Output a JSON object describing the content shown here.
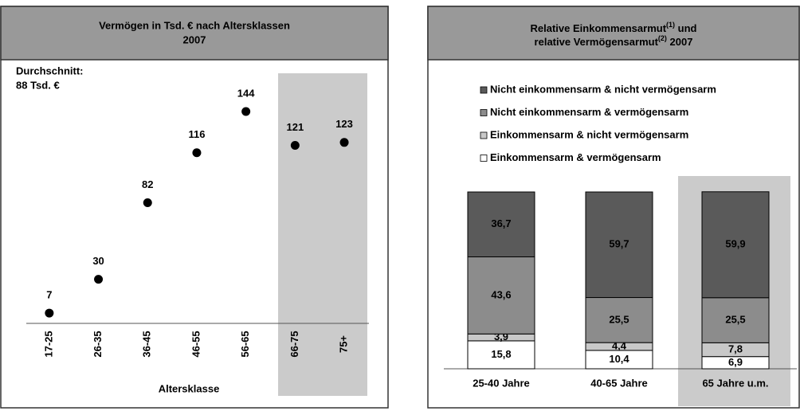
{
  "chart_data": [
    {
      "type": "dot",
      "title": [
        "Vermögen in Tsd. € nach Altersklassen",
        "2007"
      ],
      "annotation": [
        "Durchschnitt:",
        "88 Tsd. €"
      ],
      "x_label": "Altersklasse",
      "categories": [
        "17-25",
        "26-35",
        "36-45",
        "46-55",
        "56-65",
        "66-75",
        "75+"
      ],
      "values": [
        7,
        30,
        82,
        116,
        144,
        121,
        123
      ],
      "color": "#000000",
      "ylim": [
        0,
        170
      ]
    },
    {
      "type": "stacked_bar",
      "title": [
        [
          "Relative Einkommensarmut",
          "(1)",
          " und"
        ],
        [
          "relative Vermögensarmut",
          "(2)",
          " 2007"
        ]
      ],
      "categories": [
        "25-40 Jahre",
        "40-65 Jahre",
        "65 Jahre u.m."
      ],
      "ylim": [
        0,
        100
      ],
      "legend": "top",
      "series": [
        {
          "name": "Einkommensarm & vermögensarm",
          "color": "#ffffff",
          "label_color": "#000000",
          "values": [
            15.8,
            10.4,
            6.9
          ],
          "value_labels": [
            "15,8",
            "10,4",
            "6,9"
          ]
        },
        {
          "name": "Einkommensarm & nicht vermögensarm",
          "color": "#c8c8c8",
          "label_color": "#000000",
          "values": [
            3.9,
            4.4,
            7.8
          ],
          "value_labels": [
            "3,9",
            "4,4",
            "7,8"
          ]
        },
        {
          "name": "Nicht einkommensarm & vermögensarm",
          "color": "#8c8c8c",
          "label_color": "#000000",
          "values": [
            43.6,
            25.5,
            25.5
          ],
          "value_labels": [
            "43,6",
            "25,5",
            "25,5"
          ]
        },
        {
          "name": "Nicht einkommensarm & nicht vermögensarm",
          "color": "#5a5a5a",
          "label_color": "#ffffff",
          "values": [
            36.7,
            59.7,
            59.9
          ],
          "value_labels": [
            "36,7",
            "59,7",
            "59,9"
          ]
        }
      ]
    }
  ]
}
